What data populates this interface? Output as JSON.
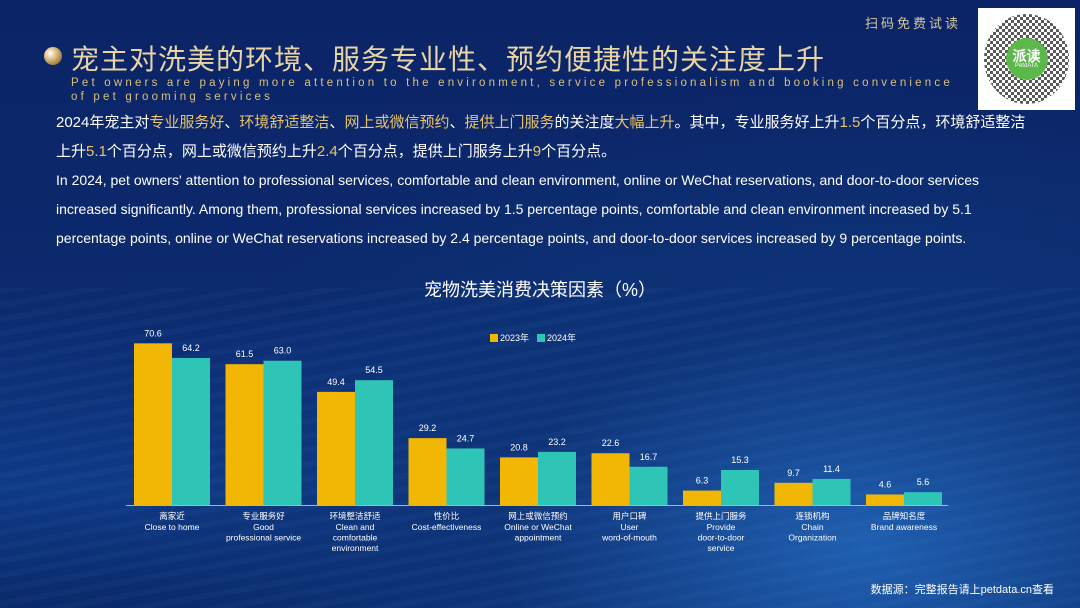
{
  "header": {
    "trial_text": "扫码免费试读",
    "qr_badge": "派读",
    "qr_sub": "PetdATA",
    "title": "宠主对洗美的环境、服务专业性、预约便捷性的关注度上升",
    "subtitle": "Pet owners are paying more attention to the environment, service professionalism and booking convenience of pet grooming services"
  },
  "body": {
    "cn_segments": [
      {
        "t": "2024年宠主对",
        "hl": false
      },
      {
        "t": "专业服务好",
        "hl": true
      },
      {
        "t": "、",
        "hl": false
      },
      {
        "t": "环境舒适整洁",
        "hl": true
      },
      {
        "t": "、",
        "hl": false
      },
      {
        "t": "网上或微信预约",
        "hl": true
      },
      {
        "t": "、",
        "hl": false
      },
      {
        "t": "提供上门服务",
        "hl": true
      },
      {
        "t": "的关注度",
        "hl": false
      },
      {
        "t": "大幅上升",
        "hl": true
      },
      {
        "t": "。其中，专业服务好上升",
        "hl": false
      },
      {
        "t": "1.5",
        "hl": true
      },
      {
        "t": "个百分点，环境舒适整洁上升",
        "hl": false
      },
      {
        "t": "5.1",
        "hl": true
      },
      {
        "t": "个百分点，网上或微信预约上升",
        "hl": false
      },
      {
        "t": "2.4",
        "hl": true
      },
      {
        "t": "个百分点，提供上门服务上升",
        "hl": false
      },
      {
        "t": "9",
        "hl": true
      },
      {
        "t": "个百分点。",
        "hl": false
      }
    ],
    "en": "In 2024, pet owners' attention to professional services, comfortable and clean environment, online or WeChat reservations, and door-to-door services increased significantly. Among them, professional services increased by 1.5 percentage points, comfortable and clean environment increased by 5.1 percentage points, online or WeChat reservations increased by 2.4 percentage points, and door-to-door services increased by 9 percentage points."
  },
  "source": "数据源：完整报告请上petdata.cn查看",
  "colors": {
    "y2023": "#f2b705",
    "y2024": "#2ec4b6"
  },
  "chart_data": {
    "type": "bar",
    "title": "宠物洗美消费决策因素（%）",
    "xlabel": "",
    "ylabel": "%",
    "ylim": [
      0,
      75
    ],
    "grid": false,
    "legend_position": "top-center",
    "categories": [
      {
        "cn": "离家近",
        "en": [
          "Close to home"
        ]
      },
      {
        "cn": "专业服务好",
        "en": [
          "Good",
          "professional service"
        ]
      },
      {
        "cn": "环境整洁舒适",
        "en": [
          "Clean and",
          "comfortable",
          "environment"
        ]
      },
      {
        "cn": "性价比",
        "en": [
          "Cost-effectiveness"
        ]
      },
      {
        "cn": "网上或微信预约",
        "en": [
          "Online or WeChat",
          "appointment"
        ]
      },
      {
        "cn": "用户口碑",
        "en": [
          "User",
          "word-of-mouth"
        ]
      },
      {
        "cn": "提供上门服务",
        "en": [
          "Provide",
          "door-to-door",
          "service"
        ]
      },
      {
        "cn": "连锁机构",
        "en": [
          "Chain",
          "Organization"
        ]
      },
      {
        "cn": "品牌知名度",
        "en": [
          "Brand awareness"
        ]
      }
    ],
    "series": [
      {
        "name": "2023年",
        "values": [
          70.6,
          61.5,
          49.4,
          29.2,
          20.8,
          22.6,
          6.3,
          9.7,
          4.6
        ]
      },
      {
        "name": "2024年",
        "values": [
          64.2,
          63.0,
          54.5,
          24.7,
          23.2,
          16.7,
          15.3,
          11.4,
          5.6
        ]
      }
    ]
  }
}
